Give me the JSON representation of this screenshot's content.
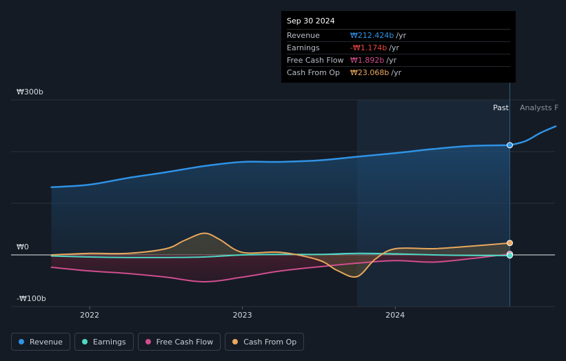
{
  "tooltip": {
    "date": "Sep 30 2024",
    "rows": [
      {
        "label": "Revenue",
        "value": "₩212.424b",
        "unit": "/yr",
        "color": "#2f93e6"
      },
      {
        "label": "Earnings",
        "value": "-₩1.174b",
        "unit": "/yr",
        "color": "#e8473f"
      },
      {
        "label": "Free Cash Flow",
        "value": "₩1.892b",
        "unit": "/yr",
        "color": "#cf4e8f"
      },
      {
        "label": "Cash From Op",
        "value": "₩23.068b",
        "unit": "/yr",
        "color": "#e9a85c"
      }
    ]
  },
  "labels": {
    "past": "Past",
    "forecast": "Analysts F"
  },
  "legend": [
    {
      "label": "Revenue",
      "color": "#2f93e6"
    },
    {
      "label": "Earnings",
      "color": "#4fd9c5"
    },
    {
      "label": "Free Cash Flow",
      "color": "#cf4e8f"
    },
    {
      "label": "Cash From Op",
      "color": "#e9a85c"
    }
  ],
  "chart_data": {
    "type": "line",
    "title": "",
    "xlabel": "",
    "ylabel": "",
    "ylim": [
      -100,
      300
    ],
    "yticks": [
      {
        "value": 300,
        "label": "₩300b"
      },
      {
        "value": 0,
        "label": "₩0"
      },
      {
        "value": -100,
        "label": "-₩100b"
      }
    ],
    "xticks": [
      {
        "value": 2022.0,
        "label": "2022"
      },
      {
        "value": 2023.0,
        "label": "2023"
      },
      {
        "value": 2024.0,
        "label": "2024"
      }
    ],
    "xlim": [
      2021.63,
      2025.05
    ],
    "past_cutoff": 2024.75,
    "forecast_band_start": 2023.75,
    "grid": true,
    "series": [
      {
        "name": "Revenue",
        "color": "#2f93e6",
        "x": [
          2021.75,
          2022.0,
          2022.25,
          2022.5,
          2022.75,
          2023.0,
          2023.25,
          2023.5,
          2023.75,
          2024.0,
          2024.25,
          2024.5,
          2024.75
        ],
        "y": [
          131,
          136,
          149,
          160,
          172,
          180,
          180,
          183,
          190,
          197,
          205,
          211,
          212.4
        ]
      },
      {
        "name": "Revenue forecast",
        "color": "#2f93e6",
        "x": [
          2024.75,
          2024.85,
          2024.95,
          2025.05
        ],
        "y": [
          212.4,
          220,
          236,
          249
        ]
      },
      {
        "name": "Earnings",
        "color": "#4fd9c5",
        "x": [
          2021.75,
          2022.0,
          2022.25,
          2022.5,
          2022.75,
          2023.0,
          2023.25,
          2023.5,
          2023.75,
          2024.0,
          2024.25,
          2024.5,
          2024.75
        ],
        "y": [
          -2,
          -4,
          -5,
          -5,
          -4,
          0,
          1,
          1,
          3,
          2,
          0,
          -1,
          -1.174
        ]
      },
      {
        "name": "Free Cash Flow",
        "color": "#cf4e8f",
        "x": [
          2021.75,
          2022.0,
          2022.25,
          2022.5,
          2022.75,
          2023.0,
          2023.25,
          2023.5,
          2023.75,
          2024.0,
          2024.25,
          2024.5,
          2024.75
        ],
        "y": [
          -24,
          -31,
          -36,
          -43,
          -52,
          -43,
          -31,
          -23,
          -16,
          -11,
          -14,
          -7,
          1.892
        ]
      },
      {
        "name": "Cash From Op",
        "color": "#e9a85c",
        "x": [
          2021.75,
          2022.0,
          2022.25,
          2022.5,
          2022.62,
          2022.75,
          2022.85,
          2023.0,
          2023.25,
          2023.5,
          2023.62,
          2023.75,
          2023.87,
          2024.0,
          2024.25,
          2024.5,
          2024.75
        ],
        "y": [
          0,
          3,
          3,
          12,
          28,
          42,
          30,
          5,
          5,
          -10,
          -30,
          -42,
          -8,
          12,
          12,
          17,
          23.068
        ]
      }
    ]
  }
}
